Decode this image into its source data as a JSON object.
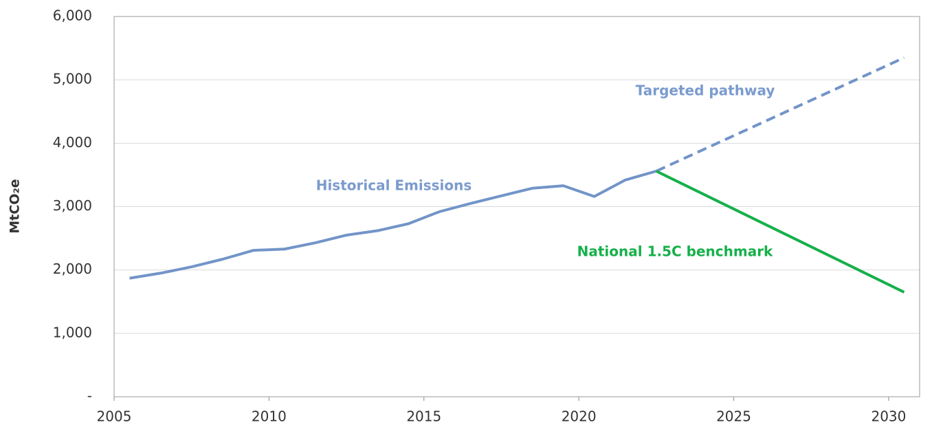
{
  "chart_data": {
    "type": "line",
    "y_label": "MtCO₂e",
    "xlim": [
      2005,
      2031
    ],
    "xticks": [
      2005,
      2010,
      2015,
      2020,
      2025,
      2030
    ],
    "ylim": [
      0,
      6000
    ],
    "yticks": [
      {
        "value": 0,
        "label": "-"
      },
      {
        "value": 1000,
        "label": "1,000"
      },
      {
        "value": 2000,
        "label": "2,000"
      },
      {
        "value": 3000,
        "label": "3,000"
      },
      {
        "value": 4000,
        "label": "4,000"
      },
      {
        "value": 5000,
        "label": "5,000"
      },
      {
        "value": 6000,
        "label": "6,000"
      }
    ],
    "grid": true,
    "series": [
      {
        "name": "Historical Emissions",
        "color": "#7294c8",
        "style": "solid",
        "x": [
          2005.5,
          2006.5,
          2007.5,
          2008.5,
          2009.5,
          2010.5,
          2011.5,
          2012.5,
          2013.5,
          2014.5,
          2015.5,
          2016.5,
          2017.5,
          2018.5,
          2019.5,
          2020.5,
          2021.5,
          2022.5
        ],
        "values": [
          1870,
          1950,
          2050,
          2170,
          2310,
          2330,
          2430,
          2550,
          2620,
          2730,
          2920,
          3050,
          3170,
          3290,
          3330,
          3160,
          3420,
          3560
        ]
      },
      {
        "name": "Targeted pathway",
        "color": "#7294c8",
        "style": "dashed",
        "x": [
          2022.5,
          2030.5
        ],
        "values": [
          3560,
          5350
        ]
      },
      {
        "name": "National 1.5C benchmark",
        "color": "#16b04a",
        "style": "solid",
        "x": [
          2022.5,
          2030.5
        ],
        "values": [
          3560,
          1650
        ]
      }
    ]
  }
}
